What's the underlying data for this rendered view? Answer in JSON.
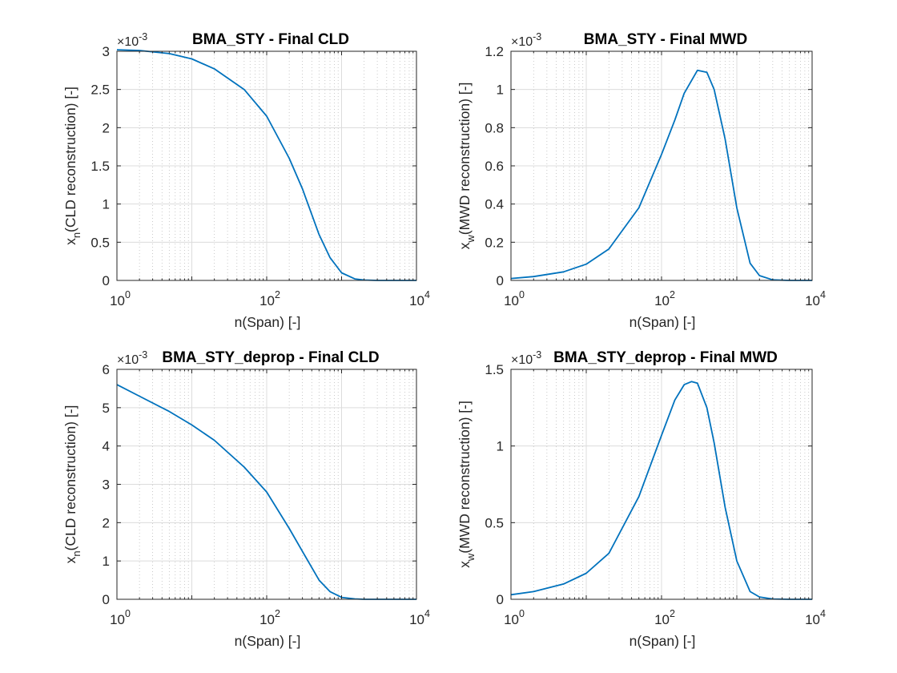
{
  "colors": {
    "line": "#0072BD",
    "axis": "#262626",
    "grid_major": "#dcdcdc",
    "grid_minor": "#bdbdbd"
  },
  "chart_data": [
    {
      "type": "line",
      "title": "BMA_STY - Final CLD",
      "xlabel": "n(Span) [-]",
      "ylabel_main": "x",
      "ylabel_sub": "n",
      "ylabel_rest": "(CLD reconstruction) [-]",
      "xscale": "log",
      "xlim": [
        1,
        10000
      ],
      "ylim": [
        0,
        3
      ],
      "yticks": [
        0,
        0.5,
        1,
        1.5,
        2,
        2.5,
        3
      ],
      "ytick_labels": [
        "0",
        "0.5",
        "1",
        "1.5",
        "2",
        "2.5",
        "3"
      ],
      "xtick_labels": [
        {
          "base": "10",
          "exp": "0"
        },
        {
          "base": "10",
          "exp": "2"
        },
        {
          "base": "10",
          "exp": "4"
        }
      ],
      "yexp_base": "×10",
      "yexp_power": "-3",
      "grid": true,
      "series": [
        {
          "x": [
            1,
            2,
            5,
            10,
            20,
            50,
            100,
            200,
            300,
            500,
            700,
            1000,
            1500,
            2000,
            3000,
            5000,
            10000
          ],
          "values": [
            3.02,
            3.01,
            2.97,
            2.9,
            2.77,
            2.5,
            2.15,
            1.6,
            1.2,
            0.6,
            0.3,
            0.1,
            0.02,
            0.005,
            0,
            0,
            0
          ]
        }
      ]
    },
    {
      "type": "line",
      "title": "BMA_STY - Final MWD",
      "xlabel": "n(Span) [-]",
      "ylabel_main": "x",
      "ylabel_sub": "w",
      "ylabel_rest": "(MWD reconstruction) [-]",
      "xscale": "log",
      "xlim": [
        1,
        10000
      ],
      "ylim": [
        0,
        1.2
      ],
      "yticks": [
        0,
        0.2,
        0.4,
        0.6,
        0.8,
        1,
        1.2
      ],
      "ytick_labels": [
        "0",
        "0.2",
        "0.4",
        "0.6",
        "0.8",
        "1",
        "1.2"
      ],
      "xtick_labels": [
        {
          "base": "10",
          "exp": "0"
        },
        {
          "base": "10",
          "exp": "2"
        },
        {
          "base": "10",
          "exp": "4"
        }
      ],
      "yexp_base": "×10",
      "yexp_power": "-3",
      "grid": true,
      "series": [
        {
          "x": [
            1,
            2,
            5,
            10,
            20,
            50,
            100,
            150,
            200,
            300,
            400,
            500,
            700,
            1000,
            1500,
            2000,
            3000,
            5000,
            10000
          ],
          "values": [
            0.01,
            0.02,
            0.045,
            0.085,
            0.165,
            0.38,
            0.66,
            0.84,
            0.98,
            1.1,
            1.09,
            1.0,
            0.74,
            0.38,
            0.09,
            0.025,
            0.003,
            0,
            0
          ]
        }
      ]
    },
    {
      "type": "line",
      "title": "BMA_STY_deprop - Final CLD",
      "xlabel": "n(Span) [-]",
      "ylabel_main": "x",
      "ylabel_sub": "n",
      "ylabel_rest": "(CLD reconstruction) [-]",
      "xscale": "log",
      "xlim": [
        1,
        10000
      ],
      "ylim": [
        0,
        6
      ],
      "yticks": [
        0,
        1,
        2,
        3,
        4,
        5,
        6
      ],
      "ytick_labels": [
        "0",
        "1",
        "2",
        "3",
        "4",
        "5",
        "6"
      ],
      "xtick_labels": [
        {
          "base": "10",
          "exp": "0"
        },
        {
          "base": "10",
          "exp": "2"
        },
        {
          "base": "10",
          "exp": "4"
        }
      ],
      "yexp_base": "×10",
      "yexp_power": "-3",
      "grid": true,
      "series": [
        {
          "x": [
            1,
            2,
            5,
            10,
            20,
            50,
            100,
            200,
            300,
            500,
            700,
            1000,
            1500,
            2000,
            3000,
            5000,
            10000
          ],
          "values": [
            5.6,
            5.3,
            4.9,
            4.55,
            4.15,
            3.45,
            2.8,
            1.85,
            1.25,
            0.5,
            0.2,
            0.05,
            0.01,
            0,
            0,
            0,
            0
          ]
        }
      ]
    },
    {
      "type": "line",
      "title": "BMA_STY_deprop - Final MWD",
      "xlabel": "n(Span) [-]",
      "ylabel_main": "x",
      "ylabel_sub": "w",
      "ylabel_rest": "(MWD reconstruction) [-]",
      "xscale": "log",
      "xlim": [
        1,
        10000
      ],
      "ylim": [
        0,
        1.5
      ],
      "yticks": [
        0,
        0.5,
        1,
        1.5
      ],
      "ytick_labels": [
        "0",
        "0.5",
        "1",
        "1.5"
      ],
      "xtick_labels": [
        {
          "base": "10",
          "exp": "0"
        },
        {
          "base": "10",
          "exp": "2"
        },
        {
          "base": "10",
          "exp": "4"
        }
      ],
      "yexp_base": "×10",
      "yexp_power": "-3",
      "grid": true,
      "series": [
        {
          "x": [
            1,
            2,
            5,
            10,
            20,
            50,
            100,
            150,
            200,
            250,
            300,
            400,
            500,
            700,
            1000,
            1500,
            2000,
            3000,
            5000,
            10000
          ],
          "values": [
            0.03,
            0.05,
            0.1,
            0.17,
            0.3,
            0.67,
            1.07,
            1.3,
            1.4,
            1.42,
            1.41,
            1.25,
            1.02,
            0.6,
            0.25,
            0.05,
            0.015,
            0.002,
            0,
            0
          ]
        }
      ]
    }
  ]
}
